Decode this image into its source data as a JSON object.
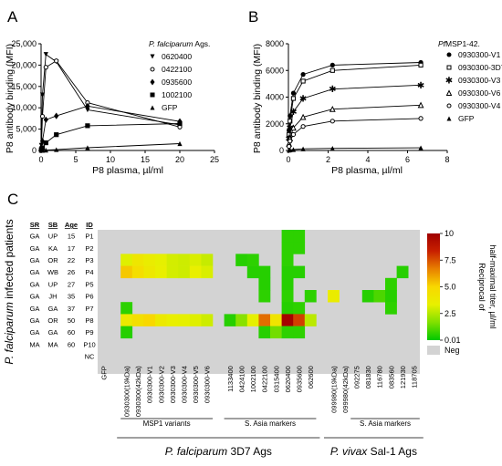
{
  "chart_data": [
    {
      "type": "line",
      "panel": "A",
      "ylabel": "P8 antibody binding (MFI)",
      "xlabel": "P8 plasma, µl/ml",
      "xlim": [
        0,
        25
      ],
      "ylim": [
        0,
        25000
      ],
      "xticks": [
        "0",
        "5",
        "10",
        "15",
        "20",
        "25"
      ],
      "yticks": [
        "0",
        "5,000",
        "10,000",
        "15,000",
        "20,000",
        "25,000"
      ],
      "legend_title_italic": "P. falciparum",
      "legend_title_rest": " Ags.",
      "legend_position": "top-right",
      "series": [
        {
          "name": "0620400",
          "marker": "triangle-down",
          "x": [
            0.04,
            0.2,
            0.7,
            2.2,
            6.7,
            20
          ],
          "y": [
            1200,
            13000,
            22500,
            20800,
            9500,
            6000
          ]
        },
        {
          "name": "0422100",
          "marker": "circle-open",
          "x": [
            0.04,
            0.2,
            0.7,
            2.2,
            6.7,
            20
          ],
          "y": [
            600,
            8000,
            19500,
            21000,
            11200,
            5500
          ]
        },
        {
          "name": "0935600",
          "marker": "diamond",
          "x": [
            0.04,
            0.2,
            0.7,
            2.2,
            6.7,
            20
          ],
          "y": [
            200,
            2200,
            7200,
            8100,
            10400,
            6800
          ]
        },
        {
          "name": "1002100",
          "marker": "square",
          "x": [
            0.04,
            0.2,
            0.7,
            2.2,
            6.7,
            20
          ],
          "y": [
            80,
            600,
            1800,
            3700,
            5800,
            6300
          ]
        },
        {
          "name": "GFP",
          "marker": "triangle-up",
          "x": [
            0.04,
            0.2,
            0.7,
            2.2,
            6.7,
            20
          ],
          "y": [
            10,
            30,
            80,
            200,
            650,
            1600
          ]
        }
      ]
    },
    {
      "type": "line",
      "panel": "B",
      "ylabel": "P8 antibody binding (MFI)",
      "xlabel": "P8 plasma, µl/ml",
      "xlim": [
        0,
        8
      ],
      "ylim": [
        0,
        8000
      ],
      "xticks": [
        "0",
        "2",
        "4",
        "6",
        "8"
      ],
      "yticks": [
        "0",
        "2000",
        "4000",
        "6000",
        "8000"
      ],
      "legend_title_italic": "Pf",
      "legend_title_rest": "MSP1-42.",
      "legend_position": "top-right",
      "series": [
        {
          "name": "0930300-V1",
          "marker": "circle",
          "x": [
            0.03,
            0.08,
            0.25,
            0.74,
            2.22,
            6.67
          ],
          "y": [
            1500,
            2600,
            4300,
            5700,
            6400,
            6600
          ]
        },
        {
          "name": "0930300-3D7",
          "marker": "square-open",
          "x": [
            0.03,
            0.08,
            0.25,
            0.74,
            2.22,
            6.67
          ],
          "y": [
            1200,
            2200,
            3900,
            5200,
            6000,
            6400
          ]
        },
        {
          "name": "0930300-V3",
          "marker": "star",
          "x": [
            0.03,
            0.08,
            0.25,
            0.74,
            2.22,
            6.67
          ],
          "y": [
            900,
            1700,
            2900,
            3900,
            4600,
            4900
          ]
        },
        {
          "name": "0930300-V6",
          "marker": "triangle-open",
          "x": [
            0.03,
            0.08,
            0.25,
            0.74,
            2.22,
            6.67
          ],
          "y": [
            500,
            900,
            1700,
            2500,
            3100,
            3400
          ]
        },
        {
          "name": "0930300-V4",
          "marker": "circle-open",
          "x": [
            0.03,
            0.08,
            0.25,
            0.74,
            2.22,
            6.67
          ],
          "y": [
            300,
            700,
            1200,
            1800,
            2200,
            2400
          ]
        },
        {
          "name": "GFP",
          "marker": "triangle-up",
          "x": [
            0.03,
            0.08,
            0.25,
            0.74,
            2.22,
            6.67
          ],
          "y": [
            20,
            40,
            70,
            120,
            160,
            200
          ]
        }
      ]
    },
    {
      "type": "heatmap",
      "panel": "C",
      "row_axis_title_italic": "P. falciparum",
      "row_axis_title_rest": " infected patients",
      "row_header": [
        "SR",
        "SB",
        "Age",
        "ID"
      ],
      "rows": [
        [
          "GA",
          "UP",
          "15",
          "P1"
        ],
        [
          "GA",
          "KA",
          "17",
          "P2"
        ],
        [
          "GA",
          "OR",
          "22",
          "P3"
        ],
        [
          "GA",
          "WB",
          "26",
          "P4"
        ],
        [
          "GA",
          "UP",
          "27",
          "P5"
        ],
        [
          "GA",
          "JH",
          "35",
          "P6"
        ],
        [
          "GA",
          "GA",
          "37",
          "P7"
        ],
        [
          "GA",
          "OR",
          "50",
          "P8"
        ],
        [
          "GA",
          "GA",
          "60",
          "P9"
        ],
        [
          "MA",
          "MA",
          "60",
          "P10"
        ],
        [
          "",
          "",
          "",
          "NC"
        ]
      ],
      "columns": [
        {
          "label": "GFP"
        },
        {
          "label": ""
        },
        {
          "label": "0930300(19kDa)"
        },
        {
          "label": "0930300(42kDa)"
        },
        {
          "label": "0930300-V1"
        },
        {
          "label": "0930300-V2"
        },
        {
          "label": "0930300-V3"
        },
        {
          "label": "0930300-V4"
        },
        {
          "label": "0930300-V5"
        },
        {
          "label": "0930300-V6"
        },
        {
          "label": ""
        },
        {
          "label": "1133400"
        },
        {
          "label": "0424100"
        },
        {
          "label": "1002100"
        },
        {
          "label": "0422100"
        },
        {
          "label": "0315400"
        },
        {
          "label": "0620400"
        },
        {
          "label": "0935600"
        },
        {
          "label": "062600"
        },
        {
          "label": ""
        },
        {
          "label": "099980(19kDa)"
        },
        {
          "label": "099980(42kDa)"
        },
        {
          "label": "092275"
        },
        {
          "label": "081830"
        },
        {
          "label": "116780"
        },
        {
          "label": "083560"
        },
        {
          "label": "121930"
        },
        {
          "label": "118705"
        }
      ],
      "values": [
        [
          null,
          null,
          null,
          null,
          null,
          null,
          null,
          null,
          null,
          null,
          null,
          null,
          null,
          null,
          null,
          null,
          0.6,
          0.6,
          null,
          null,
          null,
          null,
          null,
          null,
          null,
          null,
          null,
          null
        ],
        [
          null,
          null,
          null,
          null,
          null,
          null,
          null,
          null,
          null,
          null,
          null,
          null,
          null,
          null,
          null,
          null,
          0.6,
          0.6,
          null,
          null,
          null,
          null,
          null,
          null,
          null,
          null,
          null,
          null
        ],
        [
          null,
          null,
          3.2,
          4.0,
          3.6,
          3.3,
          3.0,
          2.9,
          3.1,
          2.8,
          null,
          null,
          0.5,
          0.6,
          null,
          null,
          0.6,
          null,
          null,
          null,
          null,
          null,
          null,
          null,
          null,
          null,
          null,
          null
        ],
        [
          null,
          null,
          5.3,
          4.6,
          3.9,
          3.4,
          3.0,
          2.9,
          3.4,
          3.1,
          null,
          null,
          null,
          0.5,
          0.5,
          null,
          0.5,
          0.5,
          null,
          null,
          null,
          null,
          null,
          null,
          null,
          null,
          0.5,
          null
        ],
        [
          null,
          null,
          null,
          null,
          null,
          null,
          null,
          null,
          null,
          null,
          null,
          null,
          null,
          null,
          0.5,
          null,
          0.5,
          null,
          null,
          null,
          null,
          null,
          null,
          null,
          null,
          0.6,
          null,
          null
        ],
        [
          null,
          null,
          null,
          null,
          null,
          null,
          null,
          null,
          null,
          null,
          null,
          null,
          null,
          null,
          0.6,
          null,
          0.6,
          null,
          0.6,
          null,
          3.6,
          null,
          null,
          0.5,
          1.0,
          0.5,
          null,
          null
        ],
        [
          null,
          null,
          0.6,
          null,
          null,
          null,
          null,
          null,
          null,
          null,
          null,
          null,
          null,
          null,
          null,
          null,
          0.5,
          0.6,
          null,
          null,
          null,
          null,
          null,
          null,
          null,
          0.6,
          null,
          null
        ],
        [
          null,
          null,
          3.8,
          4.5,
          5.0,
          3.8,
          3.4,
          3.3,
          3.2,
          2.9,
          null,
          0.5,
          1.8,
          3.3,
          7.0,
          4.2,
          9.8,
          7.8,
          2.6,
          null,
          null,
          null,
          null,
          null,
          null,
          null,
          null,
          null
        ],
        [
          null,
          null,
          0.5,
          null,
          null,
          null,
          null,
          null,
          null,
          null,
          null,
          null,
          null,
          null,
          0.5,
          1.5,
          0.6,
          0.6,
          null,
          null,
          null,
          null,
          null,
          null,
          null,
          null,
          null,
          null
        ],
        [
          null,
          null,
          null,
          null,
          null,
          null,
          null,
          null,
          null,
          null,
          null,
          null,
          null,
          null,
          null,
          null,
          null,
          null,
          null,
          null,
          null,
          null,
          null,
          null,
          null,
          null,
          null,
          null
        ],
        [
          null,
          null,
          null,
          null,
          null,
          null,
          null,
          null,
          null,
          null,
          null,
          null,
          null,
          null,
          null,
          null,
          null,
          null,
          null,
          null,
          null,
          null,
          null,
          null,
          null,
          null,
          null,
          null
        ]
      ],
      "group_labels": [
        "MSP1 variants",
        "S. Asia markers",
        "S. Asia markers"
      ],
      "bottom_labels": [
        {
          "italic": "P. falciparum",
          "rest": " 3D7 Ags"
        },
        {
          "italic": "P. vivax",
          "rest": " Sal-1 Ags"
        }
      ],
      "colorbar": {
        "label_line1": "Reciprocal of",
        "label_line2": "half-maximal titer, µl/ml",
        "ticks": [
          "10",
          "7.5",
          "5.0",
          "2.5",
          "0.01"
        ],
        "neg_label": "Neg",
        "min": 0.01,
        "max": 10,
        "colors": [
          "#00c800",
          "#80e000",
          "#e8f000",
          "#f8d800",
          "#e88000",
          "#c82000",
          "#a00000"
        ],
        "neg_color": "#d3d3d3"
      }
    }
  ],
  "panel_labels": [
    "A",
    "B",
    "C"
  ]
}
